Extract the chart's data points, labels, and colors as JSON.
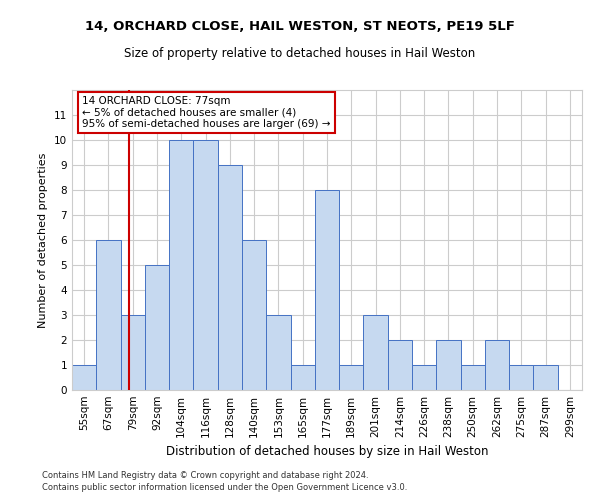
{
  "title1": "14, ORCHARD CLOSE, HAIL WESTON, ST NEOTS, PE19 5LF",
  "title2": "Size of property relative to detached houses in Hail Weston",
  "xlabel": "Distribution of detached houses by size in Hail Weston",
  "ylabel": "Number of detached properties",
  "bar_labels": [
    "55sqm",
    "67sqm",
    "79sqm",
    "92sqm",
    "104sqm",
    "116sqm",
    "128sqm",
    "140sqm",
    "153sqm",
    "165sqm",
    "177sqm",
    "189sqm",
    "201sqm",
    "214sqm",
    "226sqm",
    "238sqm",
    "250sqm",
    "262sqm",
    "275sqm",
    "287sqm",
    "299sqm"
  ],
  "bar_values": [
    1,
    6,
    3,
    5,
    10,
    10,
    9,
    6,
    3,
    1,
    8,
    1,
    3,
    2,
    1,
    2,
    1,
    2,
    1,
    1,
    0
  ],
  "bar_color": "#c6d9f0",
  "bar_edge_color": "#4472c4",
  "subject_label": "14 ORCHARD CLOSE: 77sqm",
  "annotation_line1": "← 5% of detached houses are smaller (4)",
  "annotation_line2": "95% of semi-detached houses are larger (69) →",
  "vline_color": "#cc0000",
  "annotation_box_color": "#cc0000",
  "vline_pos": 1.85,
  "ylim": [
    0,
    12
  ],
  "yticks": [
    0,
    1,
    2,
    3,
    4,
    5,
    6,
    7,
    8,
    9,
    10,
    11,
    12
  ],
  "footer1": "Contains HM Land Registry data © Crown copyright and database right 2024.",
  "footer2": "Contains public sector information licensed under the Open Government Licence v3.0.",
  "bg_color": "#ffffff",
  "grid_color": "#cccccc",
  "title1_fontsize": 9.5,
  "title2_fontsize": 8.5,
  "ylabel_fontsize": 8,
  "xlabel_fontsize": 8.5,
  "tick_fontsize": 7.5,
  "annotation_fontsize": 7.5,
  "footer_fontsize": 6
}
